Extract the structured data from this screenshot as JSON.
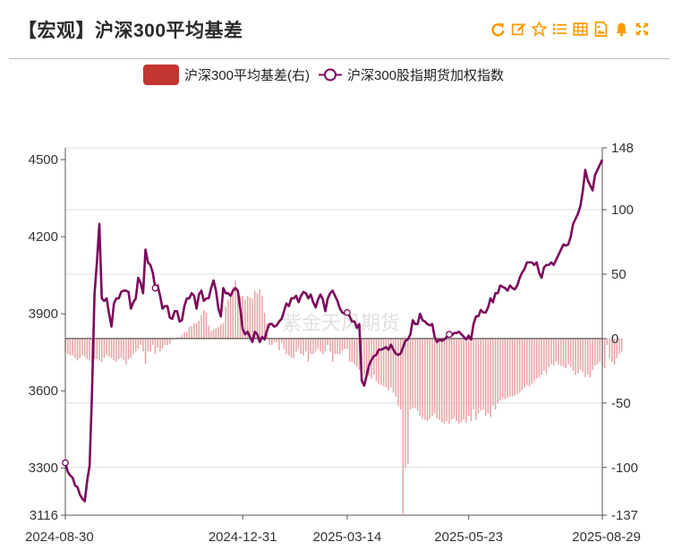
{
  "header": {
    "title": "【宏观】沪深300平均基差",
    "tools": [
      "refresh-icon",
      "edit-icon",
      "star-icon",
      "list-icon",
      "table-icon",
      "image-icon",
      "bell-icon",
      "expand-icon"
    ]
  },
  "colors": {
    "accent": "#ff9900",
    "basis_bar": "#e7a2a2",
    "basis_legend": "#c23531",
    "index_line": "#7b0a5c"
  },
  "watermark": "紫金天风期货",
  "chart_data": {
    "type": "bar+line",
    "legend": [
      {
        "name": "沪深300平均基差(右)",
        "kind": "bar"
      },
      {
        "name": "沪深300股指期货加权指数",
        "kind": "line"
      }
    ],
    "y_left": {
      "min": 3116,
      "max": 4546,
      "ticks": [
        3116,
        3300,
        3600,
        3900,
        4200,
        4500
      ]
    },
    "y_right": {
      "min": -137,
      "max": 148,
      "ticks": [
        -137,
        -100,
        -50,
        0,
        50,
        100,
        148
      ]
    },
    "x_labels": [
      "2024-08-30",
      "2024-12-31",
      "2025-03-14",
      "2025-05-23",
      "2025-08-29"
    ],
    "series": [
      {
        "name": "沪深300股指期货加权指数",
        "axis": "left",
        "values": [
          3320,
          3285,
          3270,
          3262,
          3232,
          3225,
          3196,
          3180,
          3170,
          3250,
          3310,
          3600,
          3975,
          4100,
          4250,
          3960,
          3950,
          3960,
          3900,
          3850,
          3940,
          3960,
          3960,
          3985,
          3990,
          3990,
          3985,
          3920,
          3945,
          3960,
          4040,
          4020,
          3980,
          4150,
          4100,
          4090,
          4060,
          4000,
          4010,
          3970,
          3920,
          3930,
          3930,
          3885,
          3880,
          3910,
          3910,
          3870,
          3875,
          3930,
          3960,
          3960,
          3980,
          3970,
          3920,
          3975,
          3990,
          3950,
          3960,
          3960,
          4000,
          4030,
          3990,
          3920,
          3890,
          4000,
          3980,
          3980,
          3970,
          3990,
          4000,
          3990,
          3920,
          3840,
          3820,
          3830,
          3810,
          3790,
          3830,
          3820,
          3790,
          3810,
          3800,
          3835,
          3860,
          3860,
          3850,
          3855,
          3870,
          3880,
          3910,
          3940,
          3930,
          3960,
          3960,
          3970,
          3945,
          3970,
          3985,
          3980,
          3960,
          3975,
          3945,
          3925,
          3955,
          3975,
          3955,
          3910,
          3960,
          3980,
          3990,
          3970,
          3950,
          3920,
          3905,
          3900,
          3905,
          3890,
          3870,
          3870,
          3845,
          3860,
          3640,
          3620,
          3660,
          3700,
          3720,
          3735,
          3740,
          3760,
          3760,
          3765,
          3770,
          3760,
          3780,
          3760,
          3745,
          3740,
          3745,
          3770,
          3795,
          3800,
          3820,
          3875,
          3860,
          3860,
          3900,
          3875,
          3870,
          3860,
          3855,
          3860,
          3810,
          3790,
          3800,
          3795,
          3800,
          3810,
          3820,
          3815,
          3825,
          3825,
          3830,
          3820,
          3810,
          3800,
          3815,
          3800,
          3860,
          3890,
          3890,
          3915,
          3905,
          3905,
          3925,
          3960,
          3945,
          3980,
          3980,
          4010,
          4005,
          4000,
          3990,
          4010,
          4000,
          3995,
          4010,
          4040,
          4060,
          4075,
          4100,
          4100,
          4100,
          4090,
          4100,
          4060,
          4040,
          4080,
          4090,
          4090,
          4100,
          4090,
          4110,
          4130,
          4150,
          4170,
          4165,
          4170,
          4200,
          4250,
          4270,
          4290,
          4320,
          4380,
          4460,
          4420,
          4400,
          4380,
          4440,
          4460,
          4480,
          4500
        ]
      },
      {
        "name": "沪深300平均基差(右)",
        "axis": "right",
        "values": [
          -10,
          -12,
          -13,
          -13,
          -15,
          -17,
          -15,
          -13,
          -14,
          -16,
          -17,
          -18,
          -16,
          -16,
          -17,
          -18,
          -15,
          -13,
          -14,
          -15,
          -17,
          -18,
          -16,
          -15,
          -17,
          -20,
          -16,
          -15,
          -12,
          -10,
          -8,
          -5,
          -10,
          -20,
          -10,
          -10,
          -5,
          -12,
          -7,
          -10,
          -8,
          -5,
          -5,
          -4,
          -1,
          0,
          1,
          1,
          3,
          5,
          5,
          9,
          10,
          12,
          12,
          14,
          18,
          22,
          20,
          10,
          6,
          7,
          8,
          9,
          11,
          12,
          25,
          30,
          35,
          40,
          45,
          38,
          33,
          33,
          30,
          33,
          32,
          31,
          37,
          35,
          38,
          33,
          20,
          12,
          -5,
          -5,
          -3,
          -3,
          -9,
          -3,
          -8,
          -12,
          -13,
          -15,
          -15,
          -10,
          -8,
          -12,
          -13,
          -10,
          -18,
          -12,
          -12,
          -10,
          -8,
          -10,
          -12,
          -10,
          -5,
          -10,
          -18,
          -12,
          -12,
          -12,
          -9,
          -8,
          -8,
          -18,
          -18,
          -20,
          -22,
          -24,
          -21,
          -28,
          -31,
          -29,
          -31,
          -28,
          -33,
          -35,
          -36,
          -37,
          -38,
          -40,
          -38,
          -42,
          -45,
          -52,
          -55,
          -136,
          -100,
          -97,
          -55,
          -54,
          -54,
          -56,
          -60,
          -62,
          -63,
          -64,
          -62,
          -60,
          -58,
          -62,
          -63,
          -65,
          -66,
          -64,
          -66,
          -63,
          -62,
          -64,
          -66,
          -65,
          -63,
          -65,
          -60,
          -64,
          -55,
          -63,
          -58,
          -56,
          -55,
          -60,
          -58,
          -61,
          -52,
          -55,
          -50,
          -48,
          -46,
          -47,
          -46,
          -45,
          -45,
          -44,
          -43,
          -42,
          -40,
          -38,
          -36,
          -37,
          -35,
          -33,
          -31,
          -30,
          -28,
          -25,
          -27,
          -22,
          -20,
          -21,
          -18,
          -20,
          -21,
          -22,
          -23,
          -20,
          -22,
          -25,
          -28,
          -27,
          -24,
          -26,
          -30,
          -28,
          -30,
          -24,
          -21,
          -20,
          -18,
          -22,
          -23,
          -5,
          -15,
          -18,
          -20,
          -15,
          -12,
          -10
        ]
      }
    ],
    "marker_indices": [
      0,
      37,
      116,
      158,
      300,
      309,
      333,
      487
    ],
    "ylabel_left": "",
    "ylabel_right": "",
    "grid": true
  }
}
